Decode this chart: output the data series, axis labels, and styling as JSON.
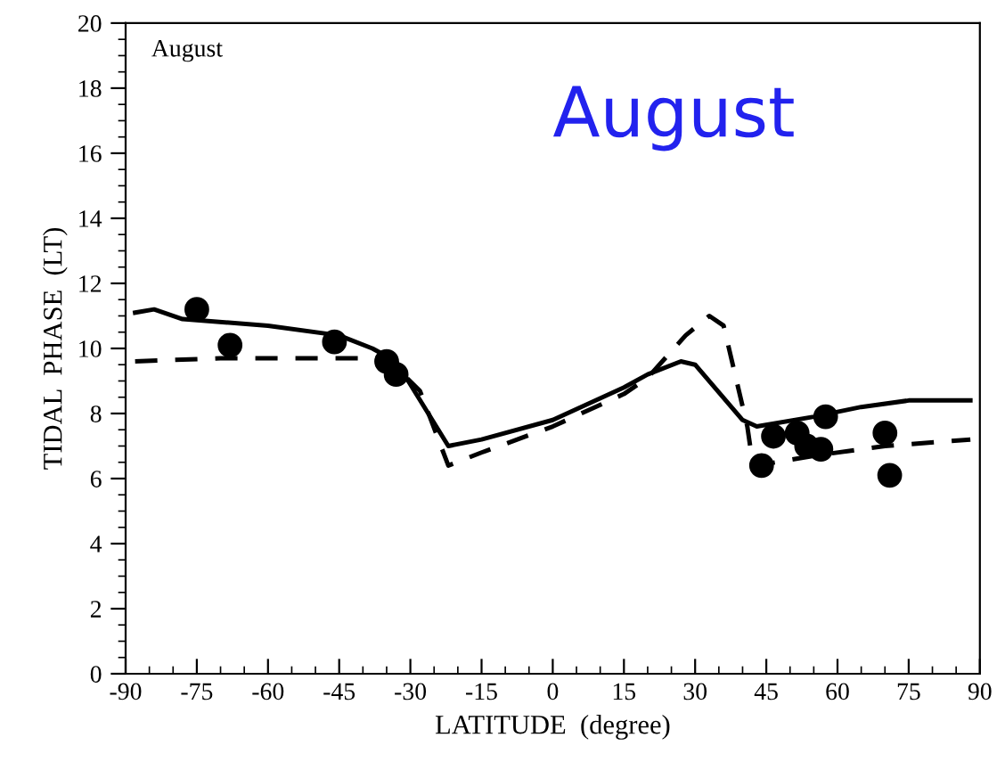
{
  "chart_data": {
    "type": "line",
    "xlabel": "LATITUDE  (degree)",
    "ylabel": "TIDAL  PHASE  (LT)",
    "annotations": [
      "August",
      "August"
    ],
    "xlim": [
      -90,
      90
    ],
    "ylim": [
      0,
      20
    ],
    "xticks": [
      -90,
      -75,
      -60,
      -45,
      -30,
      -15,
      0,
      15,
      30,
      45,
      60,
      75,
      90
    ],
    "yticks": [
      0,
      2,
      4,
      6,
      8,
      10,
      12,
      14,
      16,
      18,
      20
    ],
    "grid": false,
    "legend": false,
    "series": [
      {
        "color": "#000000",
        "line_style": "solid",
        "x": [
          -88,
          -84,
          -78,
          -60,
          -45,
          -38,
          -33,
          -22,
          -15,
          0,
          15,
          20,
          27,
          30,
          40,
          43,
          55,
          65,
          75,
          88
        ],
        "values": [
          11.1,
          11.2,
          10.9,
          10.7,
          10.4,
          10.0,
          9.6,
          7.0,
          7.2,
          7.8,
          8.8,
          9.2,
          9.6,
          9.5,
          7.8,
          7.6,
          7.9,
          8.2,
          8.4,
          8.4
        ]
      },
      {
        "color": "#000000",
        "line_style": "dashed",
        "x": [
          -88,
          -70,
          -35,
          -28,
          -22,
          -15,
          0,
          15,
          20,
          28,
          33,
          36,
          41,
          42,
          43,
          55,
          70,
          88
        ],
        "values": [
          9.6,
          9.7,
          9.7,
          8.7,
          6.4,
          6.8,
          7.6,
          8.6,
          9.1,
          10.4,
          11.0,
          10.7,
          7.6,
          6.6,
          6.4,
          6.7,
          7.0,
          7.2
        ]
      },
      {
        "type": "scatter",
        "color": "#000000",
        "marker": "circle",
        "x": [
          -75,
          -68,
          -46,
          -35,
          -33,
          44,
          46.5,
          51.5,
          53.5,
          56.5,
          57.5,
          70,
          71
        ],
        "values": [
          11.2,
          10.1,
          10.2,
          9.6,
          9.2,
          6.4,
          7.3,
          7.4,
          7.0,
          6.9,
          7.9,
          7.4,
          6.1
        ]
      }
    ]
  }
}
